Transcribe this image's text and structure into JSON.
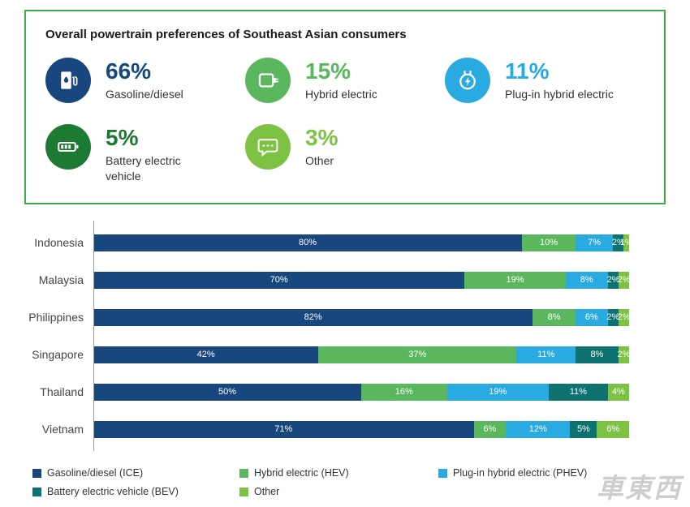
{
  "summary": {
    "title": "Overall powertrain preferences of Southeast Asian consumers",
    "stats": [
      {
        "value": "66%",
        "label": "Gasoline/diesel",
        "icon": "fuel-pump-icon",
        "color": "#17477c"
      },
      {
        "value": "15%",
        "label": "Hybrid electric",
        "icon": "charger-icon",
        "color": "#5bb75e"
      },
      {
        "value": "11%",
        "label": "Plug-in hybrid electric",
        "icon": "plug-bolt-icon",
        "color": "#29aae1"
      },
      {
        "value": "5%",
        "label": "Battery electric vehicle",
        "icon": "battery-icon",
        "color": "#1d7a33"
      },
      {
        "value": "3%",
        "label": "Other",
        "icon": "speech-bubble-icon",
        "color": "#7dc242"
      }
    ]
  },
  "chart_data": {
    "type": "bar",
    "orientation": "horizontal",
    "stacked": true,
    "categories": [
      "Indonesia",
      "Malaysia",
      "Philippines",
      "Singapore",
      "Thailand",
      "Vietnam"
    ],
    "series": [
      {
        "name": "Gasoline/diesel (ICE)",
        "color": "#17477c",
        "values": [
          80,
          70,
          82,
          42,
          50,
          71
        ]
      },
      {
        "name": "Hybrid electric (HEV)",
        "color": "#5bb75e",
        "values": [
          10,
          19,
          8,
          37,
          16,
          6
        ]
      },
      {
        "name": "Plug-in hybrid electric (PHEV)",
        "color": "#29aae1",
        "values": [
          7,
          8,
          6,
          11,
          19,
          12
        ]
      },
      {
        "name": "Battery electric vehicle (BEV)",
        "color": "#0d7270",
        "values": [
          2,
          2,
          2,
          8,
          11,
          5
        ]
      },
      {
        "name": "Other",
        "color": "#7dc242",
        "values": [
          1,
          2,
          2,
          2,
          4,
          6
        ]
      }
    ],
    "xlim": [
      0,
      100
    ],
    "value_suffix": "%",
    "grid": false,
    "legend_position": "bottom"
  },
  "watermark": "車東西"
}
